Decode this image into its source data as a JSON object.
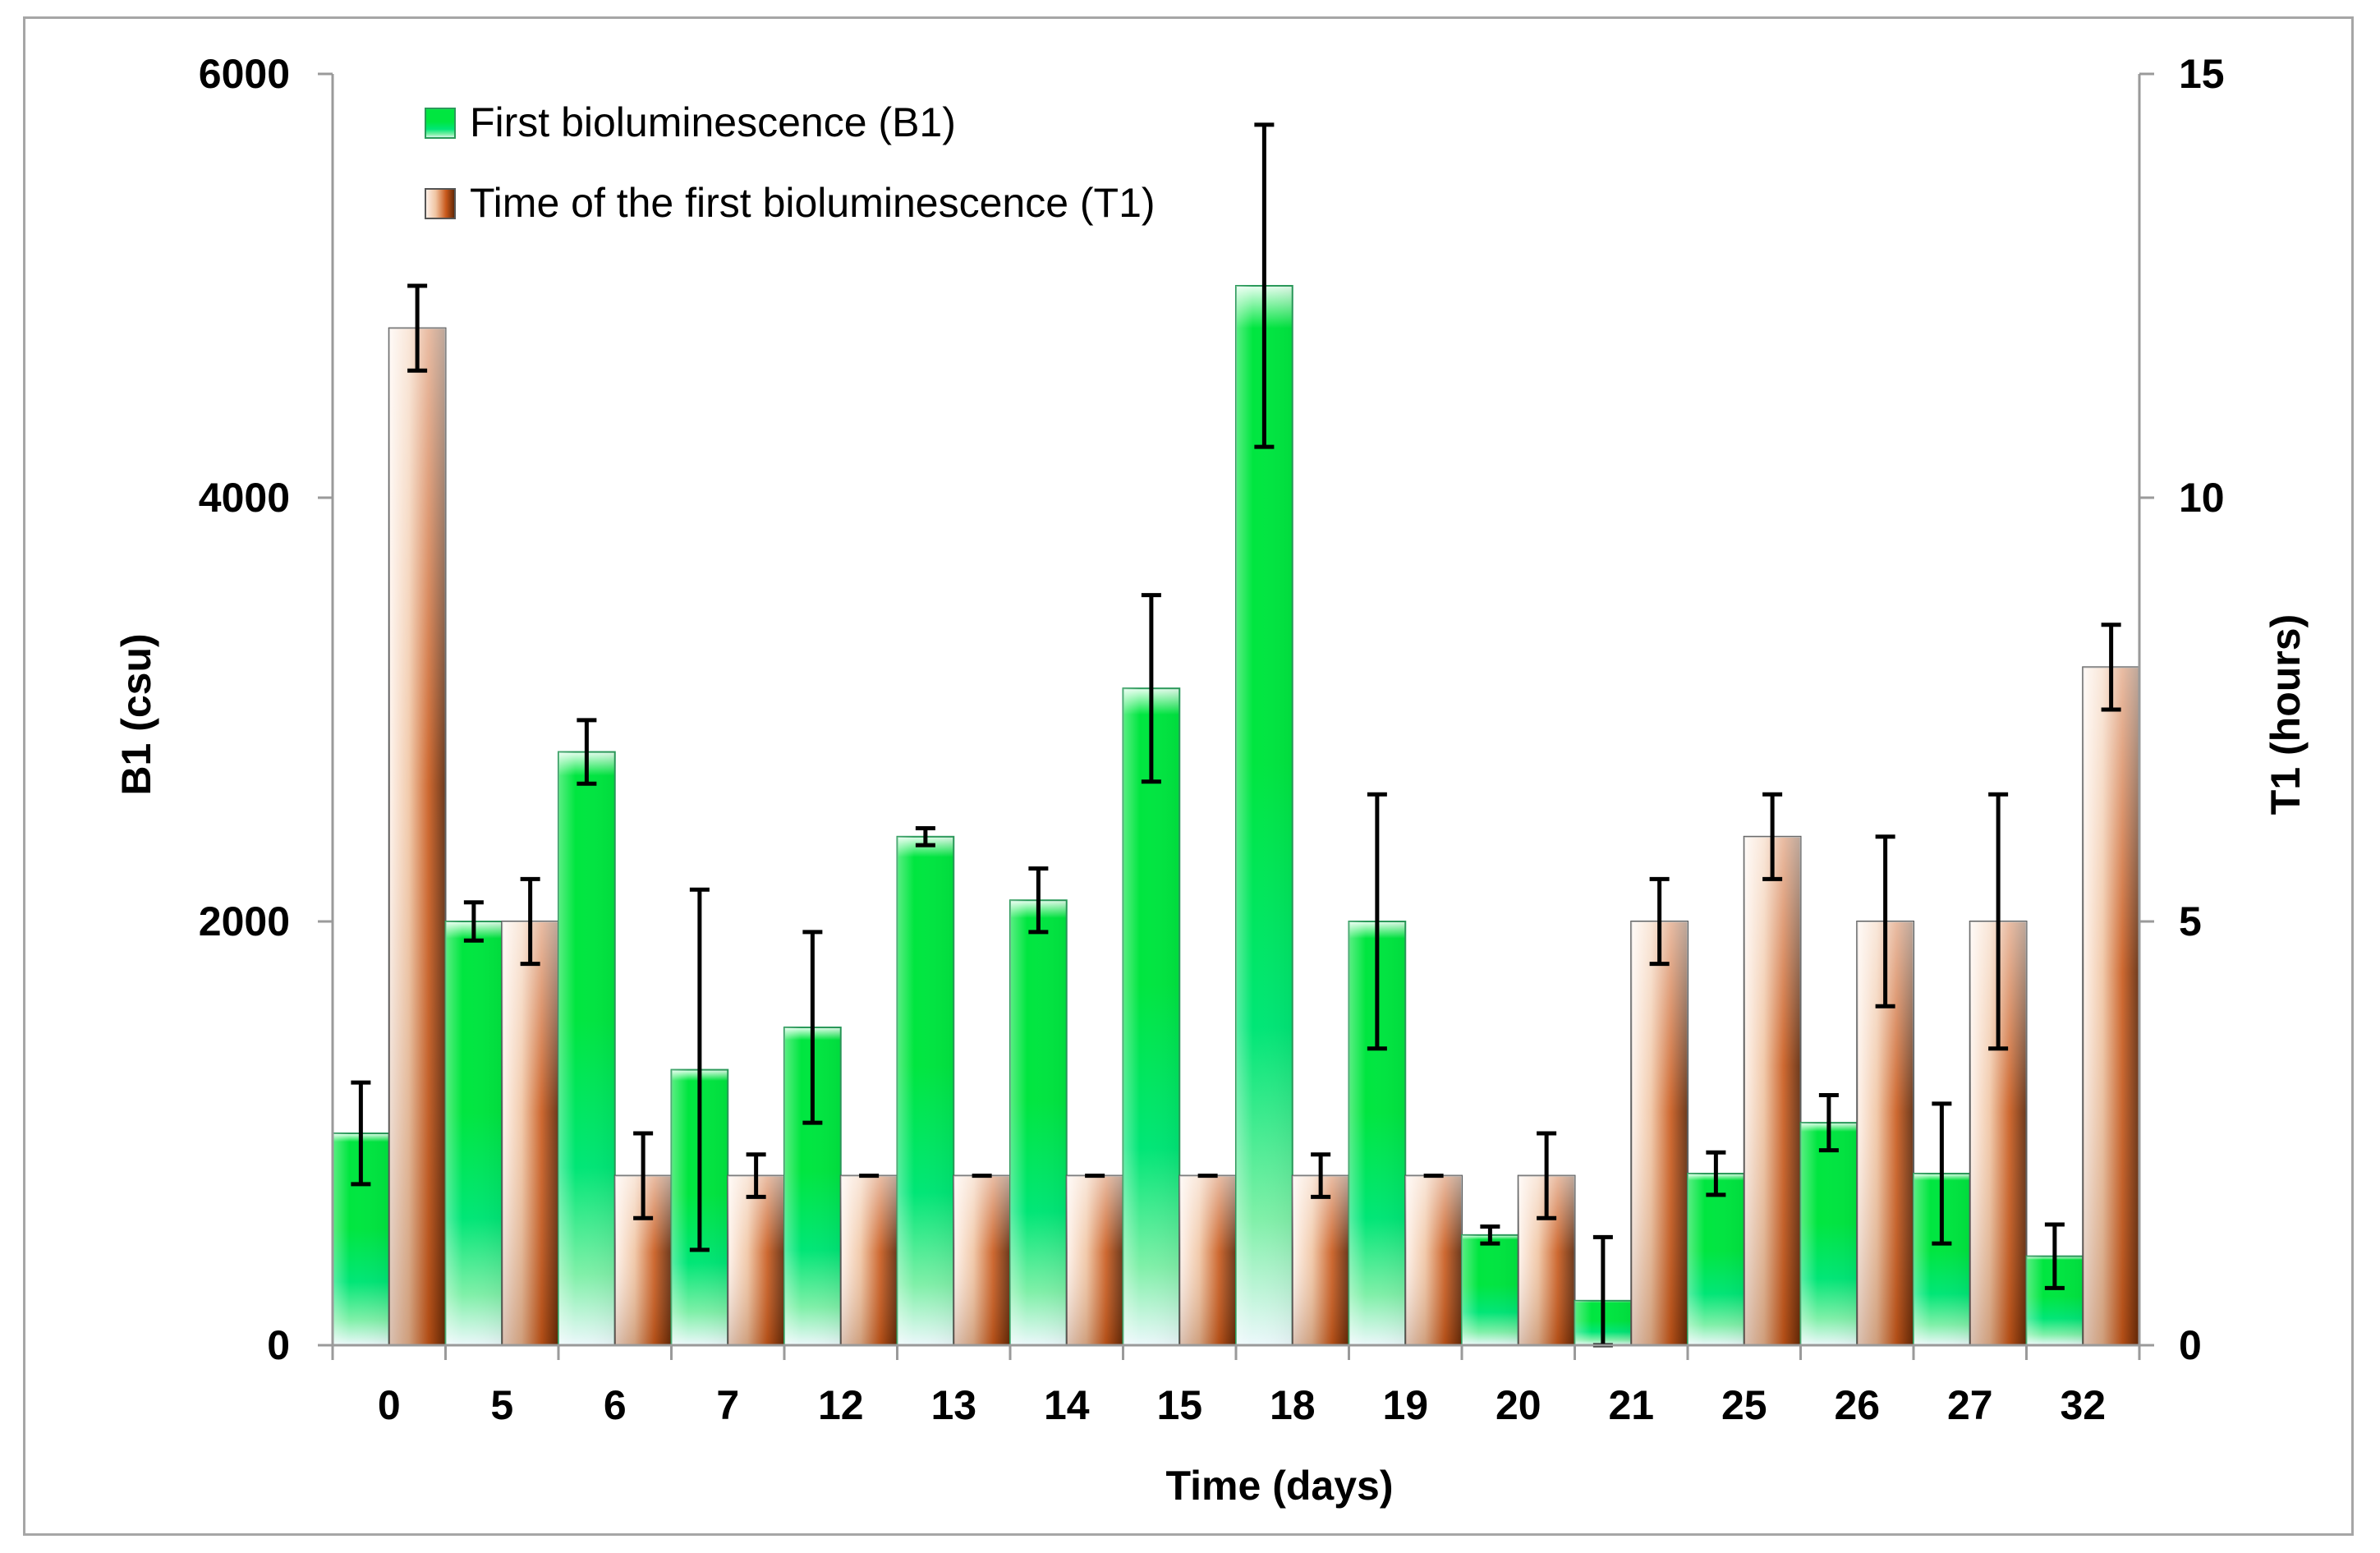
{
  "chart_data": {
    "type": "bar",
    "categories": [
      "0",
      "5",
      "6",
      "7",
      "12",
      "13",
      "14",
      "15",
      "18",
      "19",
      "20",
      "21",
      "25",
      "26",
      "27",
      "32"
    ],
    "series": [
      {
        "name": "First bioluminescence  (B1)",
        "axis": "left",
        "color": "#00e640",
        "values": [
          1000,
          2000,
          2800,
          1300,
          1500,
          2400,
          2100,
          3100,
          5000,
          2000,
          520,
          210,
          810,
          1050,
          810,
          420
        ],
        "error": [
          240,
          90,
          150,
          850,
          450,
          40,
          150,
          440,
          760,
          600,
          40,
          300,
          100,
          130,
          330,
          150
        ]
      },
      {
        "name": "Time of the first bioluminescence  (T1)",
        "axis": "right",
        "color": "#c8581a",
        "values": [
          12.0,
          5.0,
          2.0,
          2.0,
          2.0,
          2.0,
          2.0,
          2.0,
          2.0,
          2.0,
          2.0,
          5.0,
          6.0,
          5.0,
          5.0,
          8.0
        ],
        "error": [
          0.5,
          0.5,
          0.5,
          0.25,
          0.0,
          0.0,
          0.0,
          0.0,
          0.25,
          0.0,
          0.5,
          0.5,
          0.5,
          1.0,
          1.5,
          0.5
        ]
      }
    ],
    "xlabel": "Time (days)",
    "ylabel": "B1 (csu)",
    "y2label": "T1 (hours)",
    "ylim": [
      0,
      6000
    ],
    "y2lim": [
      0,
      15
    ],
    "yticks": [
      "0",
      "2000",
      "4000",
      "6000"
    ],
    "y2ticks": [
      "0",
      "5",
      "10",
      "15"
    ],
    "grid": false,
    "legend_position": "top-left"
  }
}
